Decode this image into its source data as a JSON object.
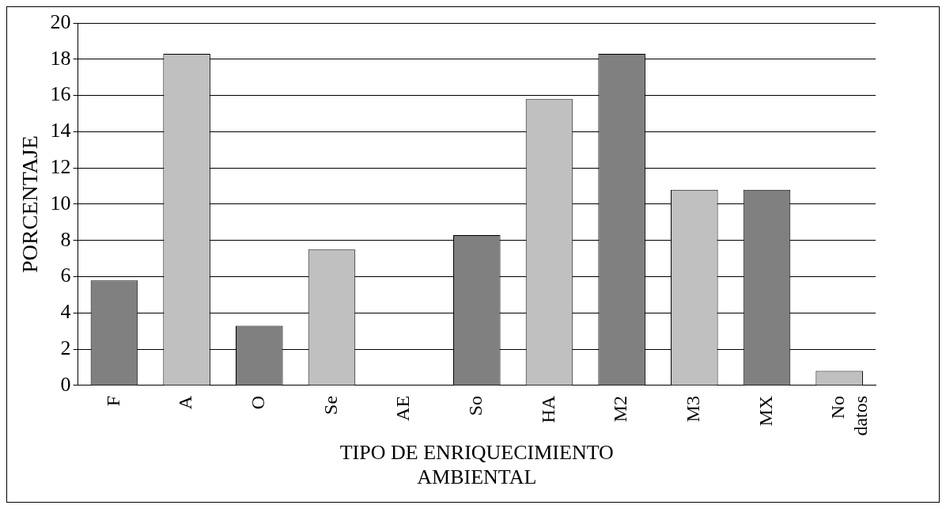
{
  "chart_data": {
    "type": "bar",
    "xlabel": "TIPO DE ENRIQUECIMIENTO AMBIENTAL",
    "ylabel": "PORCENTAJE",
    "categories": [
      "F",
      "A",
      "O",
      "Se",
      "AE",
      "So",
      "HA",
      "M2",
      "M3",
      "MX",
      "No datos"
    ],
    "values": [
      5.8,
      18.3,
      3.3,
      7.5,
      0,
      8.3,
      15.8,
      18.3,
      10.8,
      10.8,
      0.8
    ],
    "colors": [
      "#808080",
      "#c0c0c0",
      "#808080",
      "#c0c0c0",
      "#c0c0c0",
      "#808080",
      "#c0c0c0",
      "#808080",
      "#c0c0c0",
      "#808080",
      "#c0c0c0"
    ],
    "ylim": [
      0,
      20
    ],
    "yticks": [
      0,
      2,
      4,
      6,
      8,
      10,
      12,
      14,
      16,
      18,
      20
    ],
    "grid": "y",
    "legend": false
  }
}
